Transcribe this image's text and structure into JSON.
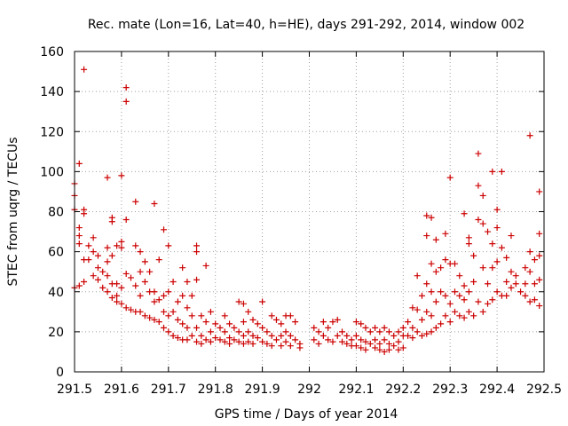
{
  "chart_data": {
    "type": "scatter",
    "title": "Rec. mate (Lon=16, Lat=40, h=HE), days 291-292, 2014, window 002",
    "xlabel": "GPS time / Days of year 2014",
    "ylabel": "STEC from uqrg / TECUs",
    "xlim": [
      291.5,
      292.5
    ],
    "ylim": [
      0,
      160
    ],
    "xticks": [
      "291.5",
      "291.6",
      "291.7",
      "291.8",
      "291.9",
      "292",
      "292.1",
      "292.2",
      "292.3",
      "292.4",
      "292.5"
    ],
    "yticks": [
      "0",
      "20",
      "40",
      "60",
      "80",
      "100",
      "120",
      "140",
      "160"
    ],
    "grid": true,
    "marker": "+",
    "color": "#cc0000",
    "series": [
      {
        "points": [
          [
            291.5,
            94
          ],
          [
            291.5,
            88
          ],
          [
            291.5,
            81
          ],
          [
            291.5,
            42
          ],
          [
            291.51,
            104
          ],
          [
            291.51,
            72
          ],
          [
            291.51,
            68
          ],
          [
            291.51,
            64
          ],
          [
            291.51,
            43
          ],
          [
            291.52,
            151
          ],
          [
            291.52,
            81
          ],
          [
            291.52,
            79
          ],
          [
            291.52,
            56
          ],
          [
            291.52,
            45
          ],
          [
            291.53,
            63
          ],
          [
            291.53,
            56
          ],
          [
            291.54,
            67
          ],
          [
            291.54,
            60
          ],
          [
            291.54,
            48
          ],
          [
            291.55,
            58
          ],
          [
            291.55,
            52
          ],
          [
            291.55,
            46
          ],
          [
            291.56,
            50
          ],
          [
            291.56,
            42
          ],
          [
            291.57,
            97
          ],
          [
            291.57,
            62
          ],
          [
            291.57,
            55
          ],
          [
            291.57,
            48
          ],
          [
            291.57,
            40
          ],
          [
            291.58,
            77
          ],
          [
            291.58,
            75
          ],
          [
            291.58,
            58
          ],
          [
            291.58,
            44
          ],
          [
            291.58,
            37
          ],
          [
            291.59,
            63
          ],
          [
            291.59,
            44
          ],
          [
            291.59,
            38
          ],
          [
            291.59,
            35
          ],
          [
            291.6,
            98
          ],
          [
            291.6,
            65
          ],
          [
            291.6,
            62
          ],
          [
            291.6,
            42
          ],
          [
            291.6,
            34
          ],
          [
            291.61,
            142
          ],
          [
            291.61,
            135
          ],
          [
            291.61,
            76
          ],
          [
            291.61,
            49
          ],
          [
            291.61,
            32
          ],
          [
            291.62,
            47
          ],
          [
            291.62,
            31
          ],
          [
            291.63,
            85
          ],
          [
            291.63,
            63
          ],
          [
            291.63,
            43
          ],
          [
            291.63,
            30
          ],
          [
            291.64,
            60
          ],
          [
            291.64,
            50
          ],
          [
            291.64,
            38
          ],
          [
            291.64,
            30
          ],
          [
            291.65,
            55
          ],
          [
            291.65,
            45
          ],
          [
            291.65,
            28
          ],
          [
            291.66,
            50
          ],
          [
            291.66,
            40
          ],
          [
            291.66,
            27
          ],
          [
            291.67,
            84
          ],
          [
            291.67,
            40
          ],
          [
            291.67,
            35
          ],
          [
            291.67,
            26
          ],
          [
            291.68,
            56
          ],
          [
            291.68,
            36
          ],
          [
            291.68,
            25
          ],
          [
            291.69,
            71
          ],
          [
            291.69,
            38
          ],
          [
            291.69,
            30
          ],
          [
            291.69,
            22
          ],
          [
            291.7,
            63
          ],
          [
            291.7,
            40
          ],
          [
            291.7,
            28
          ],
          [
            291.7,
            20
          ],
          [
            291.71,
            45
          ],
          [
            291.71,
            30
          ],
          [
            291.71,
            18
          ],
          [
            291.72,
            35
          ],
          [
            291.72,
            26
          ],
          [
            291.72,
            17
          ],
          [
            291.73,
            52
          ],
          [
            291.73,
            38
          ],
          [
            291.73,
            24
          ],
          [
            291.73,
            16
          ],
          [
            291.74,
            45
          ],
          [
            291.74,
            32
          ],
          [
            291.74,
            22
          ],
          [
            291.74,
            16
          ],
          [
            291.75,
            38
          ],
          [
            291.75,
            28
          ],
          [
            291.75,
            18
          ],
          [
            291.76,
            63
          ],
          [
            291.76,
            60
          ],
          [
            291.76,
            46
          ],
          [
            291.76,
            22
          ],
          [
            291.76,
            15
          ],
          [
            291.77,
            28
          ],
          [
            291.77,
            18
          ],
          [
            291.77,
            14
          ],
          [
            291.78,
            53
          ],
          [
            291.78,
            25
          ],
          [
            291.78,
            16
          ],
          [
            291.79,
            30
          ],
          [
            291.79,
            20
          ],
          [
            291.79,
            15
          ],
          [
            291.8,
            24
          ],
          [
            291.8,
            17
          ],
          [
            291.81,
            22
          ],
          [
            291.81,
            16
          ],
          [
            291.82,
            28
          ],
          [
            291.82,
            20
          ],
          [
            291.82,
            15
          ],
          [
            291.83,
            24
          ],
          [
            291.83,
            17
          ],
          [
            291.83,
            14
          ],
          [
            291.84,
            22
          ],
          [
            291.84,
            16
          ],
          [
            291.85,
            35
          ],
          [
            291.85,
            20
          ],
          [
            291.85,
            15
          ],
          [
            291.86,
            34
          ],
          [
            291.86,
            25
          ],
          [
            291.86,
            18
          ],
          [
            291.86,
            14
          ],
          [
            291.87,
            30
          ],
          [
            291.87,
            20
          ],
          [
            291.87,
            15
          ],
          [
            291.88,
            26
          ],
          [
            291.88,
            18
          ],
          [
            291.88,
            14
          ],
          [
            291.89,
            24
          ],
          [
            291.89,
            17
          ],
          [
            291.9,
            35
          ],
          [
            291.9,
            22
          ],
          [
            291.9,
            15
          ],
          [
            291.91,
            20
          ],
          [
            291.91,
            14
          ],
          [
            291.92,
            28
          ],
          [
            291.92,
            18
          ],
          [
            291.92,
            13
          ],
          [
            291.93,
            26
          ],
          [
            291.93,
            16
          ],
          [
            291.94,
            24
          ],
          [
            291.94,
            18
          ],
          [
            291.94,
            13
          ],
          [
            291.95,
            28
          ],
          [
            291.95,
            20
          ],
          [
            291.95,
            15
          ],
          [
            291.96,
            28
          ],
          [
            291.96,
            18
          ],
          [
            291.96,
            13
          ],
          [
            291.97,
            25
          ],
          [
            291.97,
            16
          ],
          [
            291.98,
            14
          ],
          [
            291.98,
            12
          ],
          [
            292.01,
            22
          ],
          [
            292.01,
            16
          ],
          [
            292.02,
            20
          ],
          [
            292.02,
            14
          ],
          [
            292.03,
            25
          ],
          [
            292.03,
            18
          ],
          [
            292.04,
            22
          ],
          [
            292.04,
            16
          ],
          [
            292.05,
            25
          ],
          [
            292.05,
            15
          ],
          [
            292.06,
            26
          ],
          [
            292.06,
            18
          ],
          [
            292.07,
            20
          ],
          [
            292.07,
            15
          ],
          [
            292.08,
            18
          ],
          [
            292.08,
            14
          ],
          [
            292.09,
            16
          ],
          [
            292.09,
            13
          ],
          [
            292.1,
            25
          ],
          [
            292.1,
            18
          ],
          [
            292.1,
            13
          ],
          [
            292.11,
            24
          ],
          [
            292.11,
            16
          ],
          [
            292.11,
            12
          ],
          [
            292.12,
            22
          ],
          [
            292.12,
            15
          ],
          [
            292.12,
            11
          ],
          [
            292.13,
            20
          ],
          [
            292.13,
            14
          ],
          [
            292.14,
            22
          ],
          [
            292.14,
            16
          ],
          [
            292.14,
            12
          ],
          [
            292.15,
            20
          ],
          [
            292.15,
            14
          ],
          [
            292.15,
            11
          ],
          [
            292.16,
            22
          ],
          [
            292.16,
            16
          ],
          [
            292.16,
            10
          ],
          [
            292.17,
            20
          ],
          [
            292.17,
            14
          ],
          [
            292.17,
            11
          ],
          [
            292.18,
            18
          ],
          [
            292.18,
            13
          ],
          [
            292.19,
            20
          ],
          [
            292.19,
            15
          ],
          [
            292.19,
            11
          ],
          [
            292.2,
            22
          ],
          [
            292.2,
            18
          ],
          [
            292.2,
            12
          ],
          [
            292.21,
            25
          ],
          [
            292.21,
            18
          ],
          [
            292.22,
            32
          ],
          [
            292.22,
            22
          ],
          [
            292.22,
            17
          ],
          [
            292.23,
            48
          ],
          [
            292.23,
            31
          ],
          [
            292.23,
            20
          ],
          [
            292.24,
            38
          ],
          [
            292.24,
            26
          ],
          [
            292.24,
            18
          ],
          [
            292.25,
            78
          ],
          [
            292.25,
            68
          ],
          [
            292.25,
            44
          ],
          [
            292.25,
            30
          ],
          [
            292.25,
            19
          ],
          [
            292.26,
            77
          ],
          [
            292.26,
            54
          ],
          [
            292.26,
            40
          ],
          [
            292.26,
            28
          ],
          [
            292.26,
            20
          ],
          [
            292.27,
            66
          ],
          [
            292.27,
            50
          ],
          [
            292.27,
            35
          ],
          [
            292.27,
            22
          ],
          [
            292.28,
            52
          ],
          [
            292.28,
            40
          ],
          [
            292.28,
            24
          ],
          [
            292.29,
            69
          ],
          [
            292.29,
            56
          ],
          [
            292.29,
            38
          ],
          [
            292.29,
            28
          ],
          [
            292.3,
            97
          ],
          [
            292.3,
            54
          ],
          [
            292.3,
            34
          ],
          [
            292.3,
            25
          ],
          [
            292.31,
            54
          ],
          [
            292.31,
            40
          ],
          [
            292.31,
            30
          ],
          [
            292.32,
            48
          ],
          [
            292.32,
            38
          ],
          [
            292.32,
            28
          ],
          [
            292.33,
            79
          ],
          [
            292.33,
            43
          ],
          [
            292.33,
            36
          ],
          [
            292.33,
            27
          ],
          [
            292.34,
            67
          ],
          [
            292.34,
            64
          ],
          [
            292.34,
            40
          ],
          [
            292.34,
            30
          ],
          [
            292.35,
            58
          ],
          [
            292.35,
            45
          ],
          [
            292.35,
            28
          ],
          [
            292.36,
            109
          ],
          [
            292.36,
            93
          ],
          [
            292.36,
            76
          ],
          [
            292.36,
            35
          ],
          [
            292.37,
            88
          ],
          [
            292.37,
            74
          ],
          [
            292.37,
            52
          ],
          [
            292.37,
            30
          ],
          [
            292.38,
            70
          ],
          [
            292.38,
            44
          ],
          [
            292.38,
            34
          ],
          [
            292.39,
            100
          ],
          [
            292.39,
            64
          ],
          [
            292.39,
            52
          ],
          [
            292.39,
            36
          ],
          [
            292.4,
            81
          ],
          [
            292.4,
            72
          ],
          [
            292.4,
            55
          ],
          [
            292.4,
            40
          ],
          [
            292.41,
            100
          ],
          [
            292.41,
            62
          ],
          [
            292.41,
            38
          ],
          [
            292.42,
            57
          ],
          [
            292.42,
            45
          ],
          [
            292.42,
            38
          ],
          [
            292.43,
            68
          ],
          [
            292.43,
            50
          ],
          [
            292.43,
            42
          ],
          [
            292.44,
            48
          ],
          [
            292.44,
            44
          ],
          [
            292.45,
            40
          ],
          [
            292.46,
            52
          ],
          [
            292.46,
            44
          ],
          [
            292.46,
            38
          ],
          [
            292.47,
            118
          ],
          [
            292.47,
            60
          ],
          [
            292.47,
            50
          ],
          [
            292.47,
            35
          ],
          [
            292.48,
            56
          ],
          [
            292.48,
            44
          ],
          [
            292.48,
            36
          ],
          [
            292.49,
            90
          ],
          [
            292.49,
            69
          ],
          [
            292.49,
            58
          ],
          [
            292.49,
            46
          ],
          [
            292.49,
            33
          ]
        ]
      }
    ]
  }
}
